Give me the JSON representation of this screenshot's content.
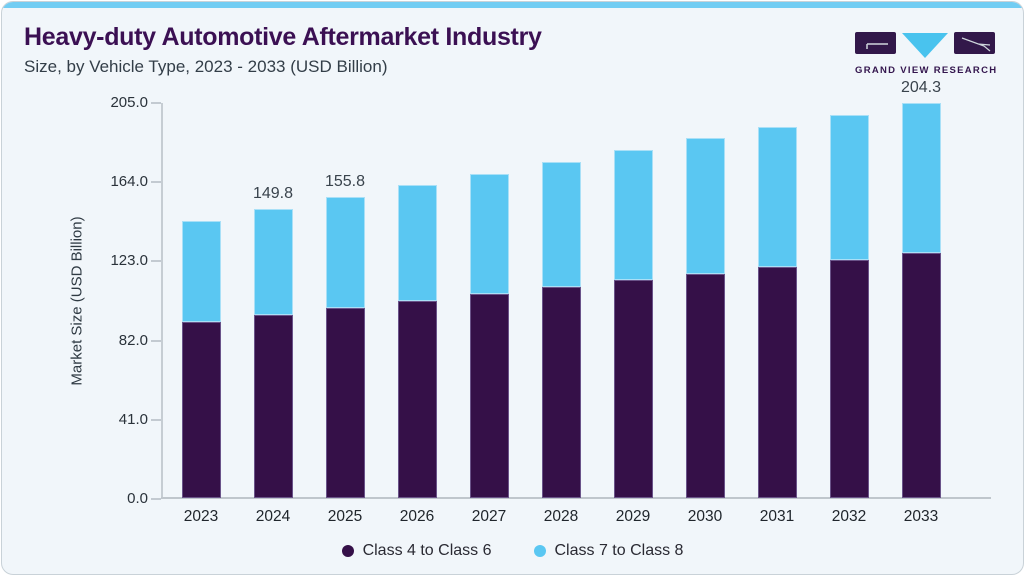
{
  "header": {
    "title": "Heavy-duty Automotive Aftermarket Industry",
    "subtitle": "Size, by Vehicle Type, 2023 - 2033 (USD Billion)"
  },
  "logo": {
    "text": "GRAND VIEW RESEARCH"
  },
  "chart_data": {
    "type": "bar",
    "stacked": true,
    "title": "Heavy-duty Automotive Aftermarket Industry Size, by Vehicle Type, 2023 - 2033 (USD Billion)",
    "ylabel": "Market Size (USD Billion)",
    "xlabel": "",
    "categories": [
      "2023",
      "2024",
      "2025",
      "2026",
      "2027",
      "2028",
      "2029",
      "2030",
      "2031",
      "2032",
      "2033"
    ],
    "series": [
      {
        "name": "Class 4 to Class 6",
        "color": "#351048",
        "values": [
          91.0,
          94.8,
          98.4,
          102.0,
          105.8,
          109.3,
          112.8,
          116.0,
          119.5,
          123.0,
          126.6
        ]
      },
      {
        "name": "Class 7 to Class 8",
        "color": "#5ac7f2",
        "values": [
          52.5,
          55.0,
          57.4,
          59.8,
          62.0,
          64.7,
          67.4,
          70.3,
          72.8,
          75.2,
          77.7
        ]
      }
    ],
    "totals": [
      143.5,
      149.8,
      155.8,
      161.8,
      167.8,
      174.0,
      180.2,
      186.3,
      192.3,
      198.2,
      204.3
    ],
    "bar_labels": [
      "",
      "149.8",
      "155.8",
      "",
      "",
      "",
      "",
      "",
      "",
      "",
      "204.3"
    ],
    "ylim": [
      0,
      205
    ],
    "yticks": [
      0.0,
      41.0,
      82.0,
      123.0,
      164.0,
      205.0
    ],
    "ytick_labels": [
      "0.0",
      "41.0",
      "82.0",
      "123.0",
      "164.0",
      "205.0"
    ],
    "grid": false,
    "legend_position": "bottom"
  },
  "colors": {
    "background": "#f1f6fa",
    "card_border": "#c9d2d8",
    "top_strip": "#72cdf3",
    "title_purple": "#3b1053",
    "accent_purple": "#351048",
    "accent_blue": "#5ac7f2",
    "axis_line": "#c3cad1"
  }
}
